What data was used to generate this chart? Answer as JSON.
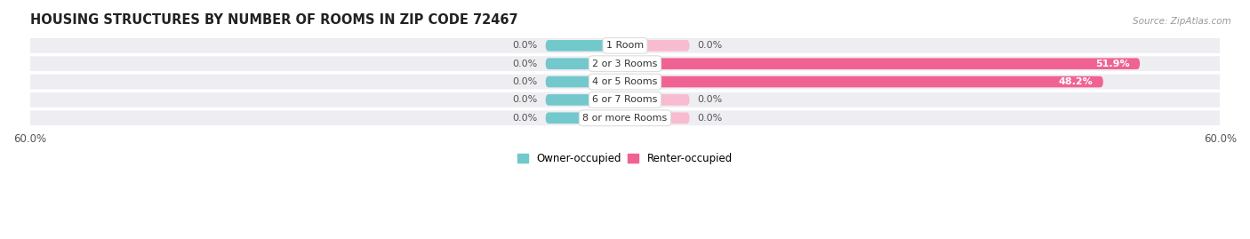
{
  "title": "HOUSING STRUCTURES BY NUMBER OF ROOMS IN ZIP CODE 72467",
  "source": "Source: ZipAtlas.com",
  "categories": [
    "1 Room",
    "2 or 3 Rooms",
    "4 or 5 Rooms",
    "6 or 7 Rooms",
    "8 or more Rooms"
  ],
  "owner_values": [
    0.0,
    0.0,
    0.0,
    0.0,
    0.0
  ],
  "renter_values": [
    0.0,
    51.9,
    48.2,
    0.0,
    0.0
  ],
  "owner_stub_pct": 8.0,
  "renter_stub_pct": 6.5,
  "axis_max": 60.0,
  "owner_color": "#72C8CB",
  "renter_color": "#F06292",
  "renter_light_color": "#F8BBD0",
  "row_bg_color": "#EDEDF2",
  "title_fontsize": 10.5,
  "label_fontsize": 8,
  "tick_fontsize": 8.5,
  "source_fontsize": 7.5
}
